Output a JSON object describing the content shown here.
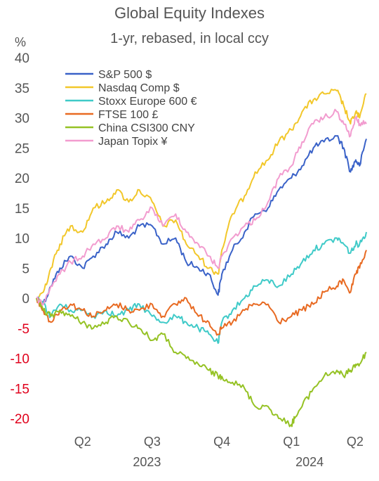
{
  "chart_data": {
    "type": "line",
    "title": "Global Equity Indexes",
    "subtitle": "1-yr, rebased, in local ccy",
    "ylabel": "%",
    "ylim": [
      -22,
      40
    ],
    "yticks": [
      40,
      35,
      30,
      25,
      20,
      15,
      10,
      5,
      0,
      -5,
      -10,
      -15,
      -20
    ],
    "negative_tick_color": "#e0001b",
    "positive_tick_color": "#555555",
    "x_range": [
      "2023-03-01",
      "2024-05-10"
    ],
    "quarter_labels": [
      {
        "label": "Q2",
        "date": "2023-05-01"
      },
      {
        "label": "Q3",
        "date": "2023-08-01"
      },
      {
        "label": "Q4",
        "date": "2023-11-01"
      },
      {
        "label": "Q1",
        "date": "2024-02-01"
      },
      {
        "label": "Q2",
        "date": "2024-04-25"
      }
    ],
    "year_labels": [
      {
        "label": "2023",
        "date": "2023-07-25"
      },
      {
        "label": "2024",
        "date": "2024-02-25"
      }
    ],
    "legend": "top-left",
    "grid": false,
    "series": [
      {
        "name": "S&P 500 $",
        "color": "#3a62c8",
        "points": [
          [
            "2023-03-01",
            0
          ],
          [
            "2023-03-10",
            -1
          ],
          [
            "2023-03-20",
            2
          ],
          [
            "2023-04-01",
            5
          ],
          [
            "2023-04-15",
            7
          ],
          [
            "2023-05-01",
            5
          ],
          [
            "2023-05-15",
            7
          ],
          [
            "2023-06-01",
            9
          ],
          [
            "2023-06-15",
            11
          ],
          [
            "2023-07-01",
            10
          ],
          [
            "2023-07-15",
            12
          ],
          [
            "2023-08-01",
            12
          ],
          [
            "2023-08-15",
            9
          ],
          [
            "2023-09-01",
            10
          ],
          [
            "2023-09-15",
            6
          ],
          [
            "2023-10-01",
            5
          ],
          [
            "2023-10-15",
            4
          ],
          [
            "2023-10-27",
            0.5
          ],
          [
            "2023-11-01",
            4
          ],
          [
            "2023-11-15",
            8
          ],
          [
            "2023-12-01",
            11
          ],
          [
            "2023-12-15",
            14
          ],
          [
            "2024-01-01",
            15
          ],
          [
            "2024-01-15",
            18
          ],
          [
            "2024-02-01",
            20
          ],
          [
            "2024-02-15",
            22
          ],
          [
            "2024-03-01",
            25
          ],
          [
            "2024-03-15",
            26
          ],
          [
            "2024-04-01",
            27
          ],
          [
            "2024-04-10",
            25
          ],
          [
            "2024-04-19",
            21
          ],
          [
            "2024-04-26",
            23
          ],
          [
            "2024-05-01",
            22
          ],
          [
            "2024-05-10",
            26.5
          ]
        ]
      },
      {
        "name": "Nasdaq Comp $",
        "color": "#f2c72a",
        "points": [
          [
            "2023-03-01",
            0
          ],
          [
            "2023-03-10",
            1
          ],
          [
            "2023-03-20",
            5
          ],
          [
            "2023-04-01",
            9
          ],
          [
            "2023-04-15",
            12
          ],
          [
            "2023-05-01",
            11
          ],
          [
            "2023-05-15",
            15
          ],
          [
            "2023-06-01",
            16
          ],
          [
            "2023-06-15",
            18
          ],
          [
            "2023-07-01",
            16
          ],
          [
            "2023-07-15",
            18
          ],
          [
            "2023-08-01",
            16
          ],
          [
            "2023-08-15",
            12
          ],
          [
            "2023-09-01",
            13
          ],
          [
            "2023-09-15",
            9
          ],
          [
            "2023-10-01",
            7
          ],
          [
            "2023-10-15",
            5
          ],
          [
            "2023-10-27",
            4
          ],
          [
            "2023-11-01",
            8
          ],
          [
            "2023-11-15",
            14
          ],
          [
            "2023-12-01",
            17
          ],
          [
            "2023-12-15",
            21
          ],
          [
            "2024-01-01",
            23
          ],
          [
            "2024-01-15",
            26
          ],
          [
            "2024-02-01",
            28
          ],
          [
            "2024-02-15",
            31
          ],
          [
            "2024-03-01",
            33
          ],
          [
            "2024-03-15",
            34
          ],
          [
            "2024-04-01",
            34.5
          ],
          [
            "2024-04-10",
            32
          ],
          [
            "2024-04-19",
            29
          ],
          [
            "2024-04-26",
            31
          ],
          [
            "2024-05-01",
            30
          ],
          [
            "2024-05-10",
            34
          ]
        ]
      },
      {
        "name": "Stoxx Europe 600 €",
        "color": "#3fcac8",
        "points": [
          [
            "2023-03-01",
            0
          ],
          [
            "2023-03-10",
            -1
          ],
          [
            "2023-03-20",
            -3
          ],
          [
            "2023-04-01",
            -1
          ],
          [
            "2023-04-15",
            -2
          ],
          [
            "2023-05-01",
            -2
          ],
          [
            "2023-05-15",
            -3
          ],
          [
            "2023-06-01",
            -2
          ],
          [
            "2023-06-15",
            -3
          ],
          [
            "2023-07-01",
            -2
          ],
          [
            "2023-07-15",
            -1
          ],
          [
            "2023-08-01",
            -3
          ],
          [
            "2023-08-15",
            -4
          ],
          [
            "2023-09-01",
            -3
          ],
          [
            "2023-09-15",
            -4
          ],
          [
            "2023-10-01",
            -5
          ],
          [
            "2023-10-15",
            -6
          ],
          [
            "2023-10-27",
            -7.5
          ],
          [
            "2023-11-01",
            -4
          ],
          [
            "2023-11-15",
            -2
          ],
          [
            "2023-12-01",
            0
          ],
          [
            "2023-12-15",
            2
          ],
          [
            "2024-01-01",
            3
          ],
          [
            "2024-01-15",
            2
          ],
          [
            "2024-02-01",
            4
          ],
          [
            "2024-02-15",
            6
          ],
          [
            "2024-03-01",
            8
          ],
          [
            "2024-03-15",
            9
          ],
          [
            "2024-04-01",
            10
          ],
          [
            "2024-04-10",
            9
          ],
          [
            "2024-04-19",
            7.5
          ],
          [
            "2024-04-26",
            9
          ],
          [
            "2024-05-01",
            9
          ],
          [
            "2024-05-10",
            11
          ]
        ]
      },
      {
        "name": "FTSE 100 £",
        "color": "#e86a22",
        "points": [
          [
            "2023-03-01",
            0
          ],
          [
            "2023-03-10",
            -2
          ],
          [
            "2023-03-20",
            -4
          ],
          [
            "2023-04-01",
            -2
          ],
          [
            "2023-04-15",
            -1
          ],
          [
            "2023-05-01",
            -2
          ],
          [
            "2023-05-15",
            -3
          ],
          [
            "2023-06-01",
            -2
          ],
          [
            "2023-06-15",
            -1
          ],
          [
            "2023-07-01",
            -2
          ],
          [
            "2023-07-15",
            -2
          ],
          [
            "2023-08-01",
            -1
          ],
          [
            "2023-08-15",
            -3
          ],
          [
            "2023-09-01",
            -1
          ],
          [
            "2023-09-15",
            0
          ],
          [
            "2023-10-01",
            -3
          ],
          [
            "2023-10-15",
            -4
          ],
          [
            "2023-10-27",
            -6
          ],
          [
            "2023-11-01",
            -5
          ],
          [
            "2023-11-15",
            -4
          ],
          [
            "2023-12-01",
            -2
          ],
          [
            "2023-12-15",
            -1
          ],
          [
            "2024-01-01",
            -1
          ],
          [
            "2024-01-15",
            -4
          ],
          [
            "2024-02-01",
            -3
          ],
          [
            "2024-02-15",
            -2
          ],
          [
            "2024-03-01",
            -1
          ],
          [
            "2024-03-15",
            1
          ],
          [
            "2024-04-01",
            2
          ],
          [
            "2024-04-10",
            3
          ],
          [
            "2024-04-19",
            1
          ],
          [
            "2024-04-26",
            4
          ],
          [
            "2024-05-01",
            5
          ],
          [
            "2024-05-10",
            8
          ]
        ]
      },
      {
        "name": "China CSI300 CNY",
        "color": "#95c224",
        "points": [
          [
            "2023-03-01",
            0
          ],
          [
            "2023-03-10",
            -2
          ],
          [
            "2023-03-20",
            -3
          ],
          [
            "2023-04-01",
            -2
          ],
          [
            "2023-04-15",
            -3
          ],
          [
            "2023-05-01",
            -4
          ],
          [
            "2023-05-15",
            -5
          ],
          [
            "2023-06-01",
            -4
          ],
          [
            "2023-06-15",
            -3
          ],
          [
            "2023-07-01",
            -4
          ],
          [
            "2023-07-15",
            -5
          ],
          [
            "2023-08-01",
            -7
          ],
          [
            "2023-08-15",
            -6
          ],
          [
            "2023-09-01",
            -9
          ],
          [
            "2023-09-15",
            -10
          ],
          [
            "2023-10-01",
            -11
          ],
          [
            "2023-10-15",
            -12
          ],
          [
            "2023-10-27",
            -13
          ],
          [
            "2023-11-01",
            -13
          ],
          [
            "2023-11-15",
            -14
          ],
          [
            "2023-12-01",
            -15
          ],
          [
            "2023-12-15",
            -18
          ],
          [
            "2024-01-01",
            -18
          ],
          [
            "2024-01-15",
            -20
          ],
          [
            "2024-02-01",
            -21
          ],
          [
            "2024-02-05",
            -20
          ],
          [
            "2024-02-15",
            -18
          ],
          [
            "2024-03-01",
            -15
          ],
          [
            "2024-03-15",
            -13
          ],
          [
            "2024-04-01",
            -12
          ],
          [
            "2024-04-10",
            -13
          ],
          [
            "2024-04-19",
            -12
          ],
          [
            "2024-04-26",
            -11
          ],
          [
            "2024-05-01",
            -11
          ],
          [
            "2024-05-10",
            -9
          ]
        ]
      },
      {
        "name": "Japan Topix ¥",
        "color": "#f29ccf",
        "points": [
          [
            "2023-03-01",
            0
          ],
          [
            "2023-03-10",
            -1
          ],
          [
            "2023-03-20",
            2
          ],
          [
            "2023-04-01",
            4
          ],
          [
            "2023-04-15",
            6
          ],
          [
            "2023-05-01",
            7
          ],
          [
            "2023-05-15",
            9
          ],
          [
            "2023-06-01",
            10
          ],
          [
            "2023-06-15",
            12
          ],
          [
            "2023-07-01",
            11
          ],
          [
            "2023-07-15",
            13
          ],
          [
            "2023-08-01",
            15
          ],
          [
            "2023-08-15",
            12
          ],
          [
            "2023-09-01",
            14
          ],
          [
            "2023-09-15",
            11
          ],
          [
            "2023-10-01",
            9
          ],
          [
            "2023-10-15",
            7
          ],
          [
            "2023-10-27",
            5
          ],
          [
            "2023-11-01",
            7
          ],
          [
            "2023-11-15",
            10
          ],
          [
            "2023-12-01",
            12
          ],
          [
            "2023-12-15",
            13
          ],
          [
            "2024-01-01",
            16
          ],
          [
            "2024-01-15",
            20
          ],
          [
            "2024-02-01",
            22
          ],
          [
            "2024-02-15",
            26
          ],
          [
            "2024-03-01",
            29
          ],
          [
            "2024-03-15",
            30
          ],
          [
            "2024-04-01",
            31
          ],
          [
            "2024-04-10",
            29
          ],
          [
            "2024-04-19",
            27
          ],
          [
            "2024-04-26",
            30
          ],
          [
            "2024-05-01",
            29
          ],
          [
            "2024-05-10",
            29
          ]
        ]
      }
    ]
  }
}
